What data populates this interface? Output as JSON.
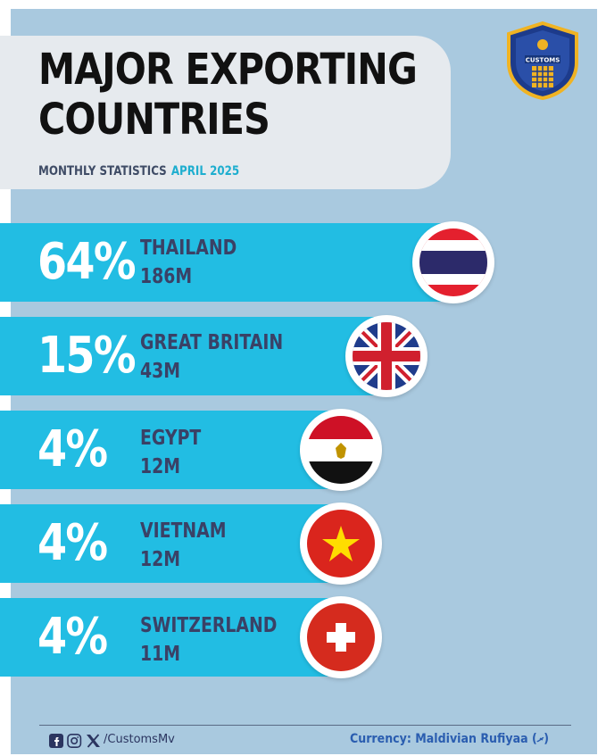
{
  "header": {
    "title_line1": "MAJOR EXPORTING",
    "title_line2": "COUNTRIES",
    "subtitle_label": "MONTHLY STATISTICS",
    "subtitle_period": "APRIL 2025",
    "logo_text": "CUSTOMS"
  },
  "chart_data": {
    "type": "bar",
    "orientation": "horizontal",
    "title": "MAJOR EXPORTING COUNTRIES",
    "subtitle": "MONTHLY STATISTICS APRIL 2025",
    "categories": [
      "THAILAND",
      "GREAT BRITAIN",
      "EGYPT",
      "VIETNAM",
      "SWITZERLAND"
    ],
    "percent_labels": [
      "64%",
      "15%",
      "4%",
      "4%",
      "4%"
    ],
    "percent_values": [
      64,
      15,
      4,
      4,
      4
    ],
    "value_labels": [
      "186M",
      "43M",
      "12M",
      "12M",
      "11M"
    ],
    "values": [
      186,
      43,
      12,
      12,
      11
    ],
    "flags": [
      "thailand-flag",
      "uk-flag",
      "egypt-flag",
      "vietnam-flag",
      "switzerland-flag"
    ],
    "bar_color": "#22bde3"
  },
  "footer": {
    "handle": "/CustomsMv",
    "currency": "Currency: Maldivian Rufiyaa (ރ)",
    "social_icons": [
      "facebook-icon",
      "instagram-icon",
      "x-icon"
    ]
  },
  "colors": {
    "background": "#a9c9df",
    "title": "#111111",
    "accent": "#1eaecf",
    "country_text": "#3a4166"
  }
}
